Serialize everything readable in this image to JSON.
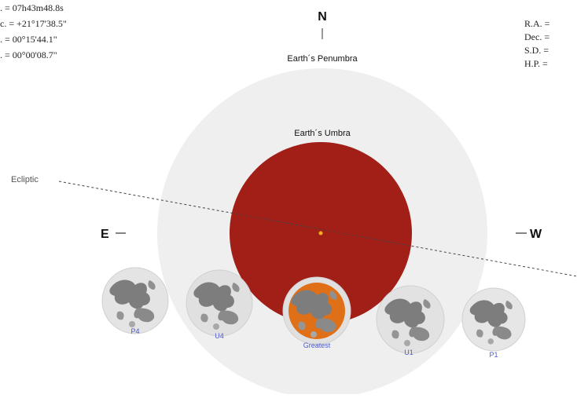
{
  "left_coords": [
    ". = 07h43m48.8s",
    "c. = +21°17'38.5\"",
    ". = 00°15'44.1\"",
    ". = 00°00'08.7\""
  ],
  "right_coords": [
    "R.A. =",
    "Dec. =",
    "S.D. =",
    "H.P. ="
  ],
  "north": "N",
  "penumbra_label": "Earth´s Penumbra",
  "umbra_label": "Earth´s Umbra",
  "ecliptic_label": "Ecliptic",
  "east": "E",
  "west": "W",
  "moons": [
    {
      "label": "P4"
    },
    {
      "label": "U4"
    },
    {
      "label": "Greatest"
    },
    {
      "label": "U1"
    },
    {
      "label": "P1"
    }
  ]
}
